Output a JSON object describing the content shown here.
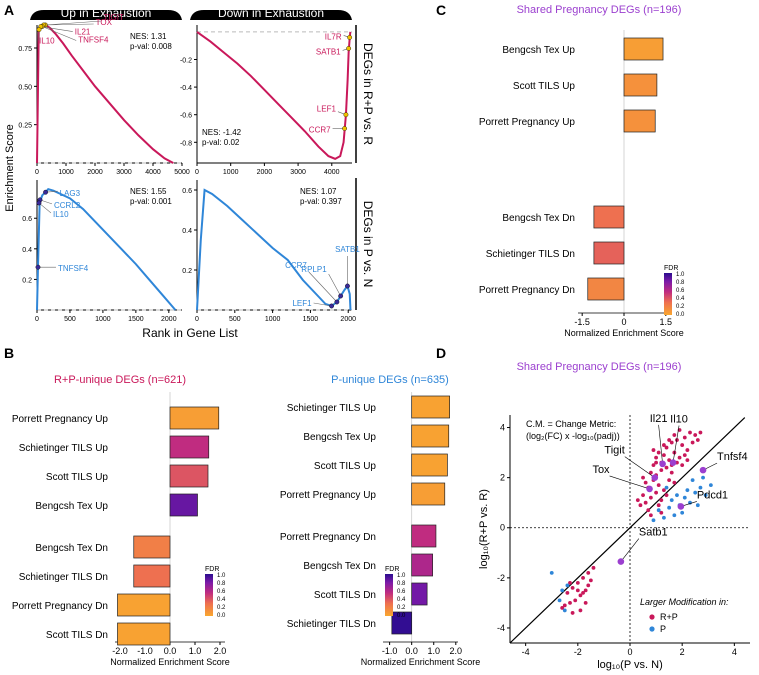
{
  "panel_letters": [
    "A",
    "B",
    "C",
    "D"
  ],
  "colors": {
    "red": "#c9185a",
    "blue": "#2f86d8",
    "purple": "#9b3fcf",
    "axis": "#000000",
    "grid": "#bbbbbb",
    "fdr_low": "#f9a72f",
    "fdr_high": "#2a0c8f"
  },
  "panelA": {
    "col_headers": [
      "Up in Exhaustion",
      "Down in Exhaustion"
    ],
    "row_labels": [
      "DEGs in R+P vs. R",
      "DEGs in P vs. N"
    ],
    "ylabel": "Enrichment Score",
    "xlabel": "Rank in Gene List"
  },
  "panelB": {
    "xlabel": "Normalized Enrichment Score",
    "legend_title": "FDR"
  },
  "panelC": {
    "xlabel": "Normalized Enrichment Score",
    "legend_title": "FDR"
  },
  "fdr_ticks": [
    "1.0",
    "0.8",
    "0.6",
    "0.4",
    "0.2",
    "0.0"
  ],
  "panelD": {
    "annotation_line1": "C.M. = Change Metric:",
    "annotation_line2": "(log₂(FC) x -log₁₀(padj))",
    "legend_title": "Larger Modification in:",
    "legend_items": [
      "R+P",
      "P"
    ]
  },
  "chart_data": [
    {
      "id": "A1",
      "type": "line",
      "title": "Up in Exhaustion",
      "row": "DEGs in R+P vs. R",
      "xlim": [
        0,
        5000
      ],
      "ylim": [
        0,
        0.9
      ],
      "xticks": [
        0,
        1000,
        2000,
        3000,
        4000,
        5000
      ],
      "yticks": [
        0.25,
        0.5,
        0.75
      ],
      "nes_text": "NES: 1.31",
      "pval_text": "p-val: 0.008",
      "color": "#c9185a",
      "x": [
        0,
        60,
        120,
        200,
        300,
        450,
        650,
        900,
        1200,
        1600,
        2000,
        2500,
        3000,
        3500,
        4000,
        4400,
        4700
      ],
      "y": [
        0.0,
        0.86,
        0.89,
        0.9,
        0.9,
        0.88,
        0.84,
        0.78,
        0.7,
        0.6,
        0.5,
        0.39,
        0.28,
        0.18,
        0.09,
        0.03,
        0.0
      ],
      "genes": [
        {
          "name": "TIGIT",
          "x": 290,
          "y": 0.9
        },
        {
          "name": "TOX",
          "x": 230,
          "y": 0.9
        },
        {
          "name": "TNFSF4",
          "x": 180,
          "y": 0.89
        },
        {
          "name": "IL21",
          "x": 130,
          "y": 0.89
        },
        {
          "name": "IL10",
          "x": 70,
          "y": 0.87
        }
      ]
    },
    {
      "id": "A2",
      "type": "line",
      "title": "Down in Exhaustion",
      "row": "DEGs in R+P vs. R",
      "xlim": [
        0,
        4600
      ],
      "ylim": [
        -0.95,
        0.05
      ],
      "xticks": [
        0,
        1000,
        2000,
        3000,
        4000
      ],
      "yticks": [
        -0.8,
        -0.6,
        -0.4,
        -0.2
      ],
      "nes_text": "NES: -1.42",
      "pval_text": "p-val: 0.02",
      "color": "#c9185a",
      "x": [
        0,
        400,
        800,
        1200,
        1600,
        2000,
        2400,
        2800,
        3200,
        3600,
        3900,
        4100,
        4250,
        4350,
        4420,
        4470,
        4500,
        4530,
        4550
      ],
      "y": [
        0.0,
        -0.07,
        -0.15,
        -0.23,
        -0.32,
        -0.42,
        -0.52,
        -0.62,
        -0.72,
        -0.83,
        -0.9,
        -0.92,
        -0.9,
        -0.8,
        -0.6,
        -0.35,
        -0.15,
        -0.05,
        0.0
      ],
      "genes": [
        {
          "name": "IL7R",
          "x": 4530,
          "y": -0.04
        },
        {
          "name": "SATB1",
          "x": 4500,
          "y": -0.12
        },
        {
          "name": "LEF1",
          "x": 4420,
          "y": -0.6
        },
        {
          "name": "CCR7",
          "x": 4380,
          "y": -0.7
        }
      ]
    },
    {
      "id": "A3",
      "type": "line",
      "title": "",
      "row": "DEGs in P vs. N",
      "xlim": [
        0,
        2200
      ],
      "ylim": [
        0,
        0.85
      ],
      "xticks": [
        0,
        500,
        1000,
        1500,
        2000
      ],
      "yticks": [
        0.2,
        0.4,
        0.6
      ],
      "nes_text": "NES: 1.55",
      "pval_text": "p-val: 0.001",
      "color": "#2f86d8",
      "x": [
        0,
        15,
        40,
        80,
        130,
        170,
        250,
        350,
        500,
        700,
        900,
        1100,
        1300,
        1500,
        1700,
        1900,
        2100
      ],
      "y": [
        0.0,
        0.28,
        0.7,
        0.75,
        0.77,
        0.79,
        0.78,
        0.76,
        0.73,
        0.66,
        0.57,
        0.48,
        0.39,
        0.3,
        0.2,
        0.1,
        0.0
      ],
      "genes": [
        {
          "name": "LAG3",
          "x": 130,
          "y": 0.77
        },
        {
          "name": "CCRL2",
          "x": 45,
          "y": 0.72
        },
        {
          "name": "IL10",
          "x": 30,
          "y": 0.7
        },
        {
          "name": "TNFSF4",
          "x": 15,
          "y": 0.28
        }
      ]
    },
    {
      "id": "A4",
      "type": "line",
      "title": "",
      "row": "DEGs in P vs. N",
      "xlim": [
        0,
        2050
      ],
      "ylim": [
        0,
        0.65
      ],
      "xticks": [
        0,
        500,
        1000,
        1500,
        2000
      ],
      "yticks": [
        0.2,
        0.4,
        0.6
      ],
      "nes_text": "NES: 1.07",
      "pval_text": "p-val: 0.397",
      "color": "#2f86d8",
      "x": [
        0,
        50,
        100,
        200,
        400,
        600,
        800,
        1000,
        1200,
        1400,
        1600,
        1700,
        1780,
        1850,
        1900,
        1950,
        1990,
        2020,
        2030
      ],
      "y": [
        0.0,
        0.35,
        0.6,
        0.58,
        0.52,
        0.45,
        0.38,
        0.31,
        0.25,
        0.15,
        0.07,
        0.03,
        0.02,
        0.04,
        0.07,
        0.1,
        0.12,
        0.08,
        0.0
      ],
      "genes": [
        {
          "name": "CCR7",
          "x": 1850,
          "y": 0.04
        },
        {
          "name": "RPLP1",
          "x": 1900,
          "y": 0.07
        },
        {
          "name": "SATB1",
          "x": 1990,
          "y": 0.12
        },
        {
          "name": "LEF1",
          "x": 1780,
          "y": 0.02
        }
      ]
    },
    {
      "id": "B1",
      "type": "bar",
      "title": "R+P-unique DEGs (n=621)",
      "xlabel": "Normalized Enrichment Score",
      "xlim": [
        -2.2,
        2.2
      ],
      "xticks": [
        -2.0,
        -1.0,
        0.0,
        1.0,
        2.0
      ],
      "tick_labels": [
        "-2.0",
        "-1.0",
        "0.0",
        "1.0",
        "2.0"
      ],
      "categories": [
        "Porrett Pregnancy Up",
        "Schietinger TILS Up",
        "Scott TILS Up",
        "Bengcsh Tex Up",
        "Bengcsh Tex Dn",
        "Schietinger TILS Dn",
        "Porrett Pregnancy Dn",
        "Scott TILS Dn"
      ],
      "values": [
        1.95,
        1.55,
        1.52,
        1.1,
        -1.45,
        -1.45,
        -2.1,
        -2.1
      ],
      "fdr": [
        0.05,
        0.55,
        0.4,
        0.85,
        0.22,
        0.3,
        0.03,
        0.03
      ]
    },
    {
      "id": "B2",
      "type": "bar",
      "title": "P-unique DEGs (n=635)",
      "xlabel": "Normalized Enrichment Score",
      "xlim": [
        -1.3,
        2.1
      ],
      "xticks": [
        -1.0,
        0.0,
        1.0,
        2.0
      ],
      "tick_labels": [
        "-1.0",
        "0.0",
        "1.0",
        "2.0"
      ],
      "categories": [
        "Schietinger TILS Up",
        "Bengcsh Tex Up",
        "Scott TILS Up",
        "Porrett Pregnancy Up",
        "Porrett Pregnancy Dn",
        "Bengcsh Tex Dn",
        "Scott TILS Dn",
        "Schietinger TILS Dn"
      ],
      "values": [
        1.72,
        1.68,
        1.62,
        1.5,
        1.1,
        0.95,
        0.7,
        -0.9
      ],
      "fdr": [
        0.03,
        0.03,
        0.03,
        0.05,
        0.55,
        0.62,
        0.82,
        0.98
      ]
    },
    {
      "id": "C",
      "type": "bar",
      "title": "Shared Pregnancy DEGs (n=196)",
      "xlabel": "Normalized Enrichment Score",
      "xlim": [
        -1.65,
        1.65
      ],
      "xticks": [
        -1.5,
        0.0,
        1.5
      ],
      "tick_labels": [
        "-1.5",
        "0",
        "1.5"
      ],
      "categories": [
        "Bengcsh Tex Up",
        "Scott TILS Up",
        "Porrett Pregnancy Up",
        "Bengcsh Tex Dn",
        "Schietinger TILS Dn",
        "Porrett Pregnancy Dn"
      ],
      "values": [
        1.4,
        1.18,
        1.12,
        -1.08,
        -1.08,
        -1.3
      ],
      "fdr": [
        0.05,
        0.12,
        0.12,
        0.3,
        0.35,
        0.18
      ]
    },
    {
      "id": "D",
      "type": "scatter",
      "title": "Shared Pregnancy DEGs (n=196)",
      "xlabel": "log₁₀(P vs. N)",
      "ylabel": "log₁₀(R+P vs. R)",
      "xlim": [
        -4.6,
        4.6
      ],
      "ylim": [
        -4.6,
        4.5
      ],
      "xticks": [
        -4,
        -2,
        0,
        2,
        4
      ],
      "yticks": [
        -4,
        -2,
        0,
        2,
        4
      ],
      "labeled_genes": [
        {
          "name": "Il21",
          "x": 1.25,
          "y": 2.55
        },
        {
          "name": "Il10",
          "x": 1.65,
          "y": 2.6
        },
        {
          "name": "Tigit",
          "x": 0.95,
          "y": 2.0
        },
        {
          "name": "Tox",
          "x": 0.75,
          "y": 1.55
        },
        {
          "name": "Tnfsf4",
          "x": 2.8,
          "y": 2.3
        },
        {
          "name": "Pdcd1",
          "x": 1.95,
          "y": 0.85
        },
        {
          "name": "Satb1",
          "x": -0.35,
          "y": -1.35
        }
      ],
      "series": [
        {
          "name": "R+P",
          "color": "#c9185a",
          "points": [
            [
              0.8,
              2.2
            ],
            [
              0.9,
              2.5
            ],
            [
              1.0,
              2.8
            ],
            [
              1.1,
              3.0
            ],
            [
              1.2,
              2.6
            ],
            [
              1.3,
              2.9
            ],
            [
              1.4,
              3.2
            ],
            [
              1.5,
              2.7
            ],
            [
              1.6,
              3.4
            ],
            [
              1.7,
              3.0
            ],
            [
              1.8,
              3.5
            ],
            [
              1.9,
              2.8
            ],
            [
              2.0,
              3.3
            ],
            [
              2.1,
              3.6
            ],
            [
              2.2,
              3.1
            ],
            [
              2.3,
              3.8
            ],
            [
              2.4,
              3.4
            ],
            [
              2.5,
              3.7
            ],
            [
              1.0,
              2.1
            ],
            [
              1.2,
              2.3
            ],
            [
              1.4,
              2.4
            ],
            [
              1.6,
              2.2
            ],
            [
              1.8,
              2.6
            ],
            [
              2.0,
              2.5
            ],
            [
              2.2,
              2.7
            ],
            [
              0.6,
              1.8
            ],
            [
              0.7,
              1.6
            ],
            [
              0.9,
              1.9
            ],
            [
              1.1,
              1.7
            ],
            [
              1.3,
              1.5
            ],
            [
              1.5,
              1.9
            ],
            [
              1.7,
              1.8
            ],
            [
              0.5,
              1.3
            ],
            [
              0.6,
              1.0
            ],
            [
              0.8,
              1.2
            ],
            [
              1.0,
              1.4
            ],
            [
              1.2,
              1.1
            ],
            [
              1.4,
              1.3
            ],
            [
              0.4,
              0.9
            ],
            [
              0.7,
              0.7
            ],
            [
              1.1,
              0.9
            ],
            [
              0.9,
              3.1
            ],
            [
              1.3,
              3.3
            ],
            [
              1.5,
              3.5
            ],
            [
              1.7,
              3.7
            ],
            [
              1.9,
              3.9
            ],
            [
              2.6,
              3.5
            ],
            [
              2.7,
              3.8
            ],
            [
              0.5,
              2.0
            ],
            [
              1.0,
              2.6
            ],
            [
              1.6,
              2.5
            ],
            [
              2.1,
              2.9
            ],
            [
              0.8,
              0.5
            ],
            [
              1.2,
              0.6
            ],
            [
              0.3,
              1.1
            ],
            [
              -1.6,
              -1.8
            ],
            [
              -1.8,
              -2.0
            ],
            [
              -2.0,
              -2.2
            ],
            [
              -2.2,
              -2.4
            ],
            [
              -1.7,
              -2.5
            ],
            [
              -1.9,
              -2.7
            ],
            [
              -2.1,
              -2.9
            ],
            [
              -2.3,
              -3.0
            ],
            [
              -2.5,
              -3.1
            ],
            [
              -1.5,
              -2.1
            ],
            [
              -1.6,
              -2.3
            ],
            [
              -1.8,
              -2.6
            ],
            [
              -2.0,
              -2.5
            ],
            [
              -2.4,
              -2.6
            ],
            [
              -1.4,
              -1.6
            ],
            [
              -2.6,
              -3.2
            ],
            [
              -1.9,
              -3.3
            ],
            [
              -2.2,
              -3.4
            ],
            [
              -1.7,
              -3.0
            ],
            [
              -2.3,
              -2.2
            ]
          ]
        },
        {
          "name": "P",
          "color": "#2f86d8",
          "points": [
            [
              1.5,
              0.8
            ],
            [
              1.7,
              0.5
            ],
            [
              1.9,
              0.9
            ],
            [
              2.1,
              1.2
            ],
            [
              2.3,
              1.0
            ],
            [
              2.5,
              1.4
            ],
            [
              2.7,
              1.6
            ],
            [
              2.9,
              1.3
            ],
            [
              3.1,
              1.7
            ],
            [
              1.3,
              0.4
            ],
            [
              1.6,
              1.1
            ],
            [
              2.0,
              0.6
            ],
            [
              2.2,
              1.5
            ],
            [
              2.6,
              0.9
            ],
            [
              1.8,
              1.3
            ],
            [
              0.9,
              0.3
            ],
            [
              1.1,
              0.7
            ],
            [
              -2.4,
              -2.3
            ],
            [
              -2.6,
              -2.5
            ],
            [
              -3.0,
              -1.8
            ],
            [
              -2.7,
              -2.9
            ],
            [
              -2.5,
              -3.3
            ],
            [
              2.4,
              1.9
            ],
            [
              2.8,
              2.0
            ],
            [
              1.4,
              1.6
            ]
          ]
        }
      ]
    }
  ]
}
